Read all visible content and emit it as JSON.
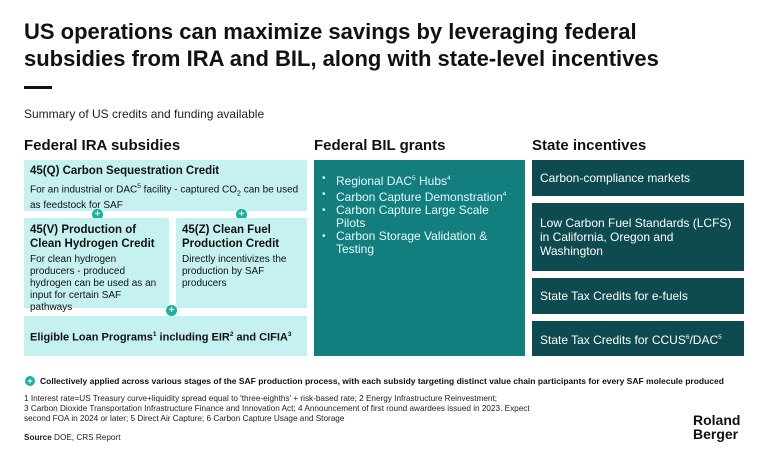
{
  "header": {
    "title": "US operations can maximize savings by leveraging federal subsidies from IRA and BIL, along with state-level incentives",
    "subtitle": "Summary of US credits and funding available"
  },
  "federal_ira": {
    "heading": "Federal IRA subsidies",
    "q45": {
      "title": "45(Q) Carbon Sequestration Credit",
      "desc_pre": "For an industrial or DAC",
      "desc_sup": "5",
      "desc_mid": " facility - captured CO",
      "desc_sub": "2",
      "desc_post": " can be used as feedstock for SAF"
    },
    "v45": {
      "title": "45(V) Production of Clean Hydrogen Credit",
      "desc": "For clean hydrogen producers - produced hydrogen can be used as an input for certain SAF pathways"
    },
    "z45": {
      "title": "45(Z) Clean Fuel Production Credit",
      "desc": "Directly incentivizes the production by SAF producers"
    },
    "loan": {
      "pre": "Eligible Loan Programs",
      "sup1": "1",
      "mid": " including EIR",
      "sup2": "2",
      "and": " and CIFIA",
      "sup3": "3"
    }
  },
  "federal_bil": {
    "heading": "Federal BIL grants",
    "items": [
      {
        "text": "Regional DAC",
        "sup": "5",
        "text2": " Hubs",
        "sup2": "4"
      },
      {
        "text": "Carbon Capture Demonstration",
        "sup": "4",
        "text2": "",
        "sup2": ""
      },
      {
        "text": "Carbon Capture Large Scale Pilots",
        "sup": "",
        "text2": "",
        "sup2": ""
      },
      {
        "text": "Carbon Storage Validation & Testing",
        "sup": "",
        "text2": "",
        "sup2": ""
      }
    ]
  },
  "state": {
    "heading": "State incentives",
    "items": {
      "compliance": "Carbon-compliance markets",
      "lcfs": "Low Carbon Fuel Standards (LCFS) in California, Oregon and Washington",
      "tax_efuels": "State Tax Credits for e-fuels",
      "tax_ccus_pre": "State Tax Credits for CCUS",
      "tax_ccus_sup1": "6",
      "tax_ccus_mid": "/DAC",
      "tax_ccus_sup2": "5"
    }
  },
  "plus_symbol": "+",
  "footnote_main": "Collectively applied across various stages of the SAF production process, with each subsidy targeting distinct value chain participants for every SAF molecule produced",
  "notes": {
    "line1": "1  Interest rate=US Treasury curve+liquidity spread equal to 'three-eighths' + risk-based rate;  2  Energy Infrastructure Reinvestment;",
    "line2": "3  Carbon Dioxide Transportation Infrastructure Finance and Innovation Act;  4  Announcement of first round awardees issued in 2023. Expect",
    "line3": "second FOA in 2024 or later;  5  Direct Air Capture;  6  Carbon Capture Usage and Storage"
  },
  "source": {
    "label": "Source",
    "text": " DOE, CRS Report"
  },
  "logo": {
    "line1": "Roland",
    "line2": "Berger"
  },
  "colors": {
    "light_teal": "#c6f1f1",
    "mid_teal": "#127e7e",
    "dark_teal": "#0d4b50",
    "plus_green": "#19b39a"
  }
}
